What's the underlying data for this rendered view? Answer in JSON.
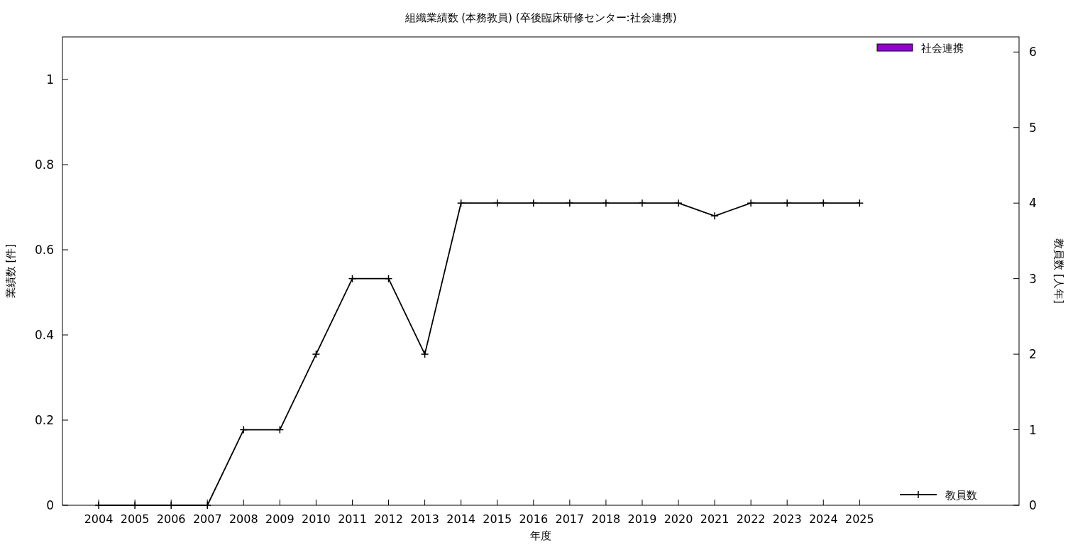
{
  "chart_data": {
    "type": "bar",
    "title": "組織業績数 (本務教員) (卒後臨床研修センター:社会連携)",
    "xlabel": "年度",
    "ylabel": "業績数 [件]",
    "y2label": "教員数 [人年]",
    "x": [
      2004,
      2005,
      2006,
      2007,
      2008,
      2009,
      2010,
      2011,
      2012,
      2013,
      2014,
      2015,
      2016,
      2017,
      2018,
      2019,
      2020,
      2021,
      2022,
      2023,
      2024,
      2025
    ],
    "xlim": [
      2003,
      2029.4
    ],
    "xticks": [
      2004,
      2005,
      2006,
      2007,
      2008,
      2009,
      2010,
      2011,
      2012,
      2013,
      2014,
      2015,
      2016,
      2017,
      2018,
      2019,
      2020,
      2021,
      2022,
      2023,
      2024,
      2025
    ],
    "ylim": [
      0,
      1.1
    ],
    "yticks": [
      0,
      0.2,
      0.4,
      0.6,
      0.8,
      1
    ],
    "y2lim": [
      0,
      6.2
    ],
    "y2ticks": [
      0,
      1,
      2,
      3,
      4,
      5,
      6
    ],
    "legend": "right",
    "grid": false,
    "series": [
      {
        "name": "社会連携",
        "color": "#9400d3",
        "values": [
          0,
          0,
          0,
          0,
          0,
          0,
          0,
          0,
          0,
          0,
          0,
          0,
          0,
          0,
          0,
          0,
          0,
          0,
          0,
          0,
          0,
          0
        ]
      },
      {
        "name": "教員数",
        "type": "line",
        "axis": "y2",
        "color": "#000000",
        "marker": "cross",
        "values": [
          0,
          0,
          0,
          0,
          1,
          1,
          2,
          3,
          3,
          2,
          4,
          4,
          4,
          4,
          4,
          4,
          4,
          3.83,
          4,
          4,
          4,
          4
        ]
      }
    ]
  }
}
